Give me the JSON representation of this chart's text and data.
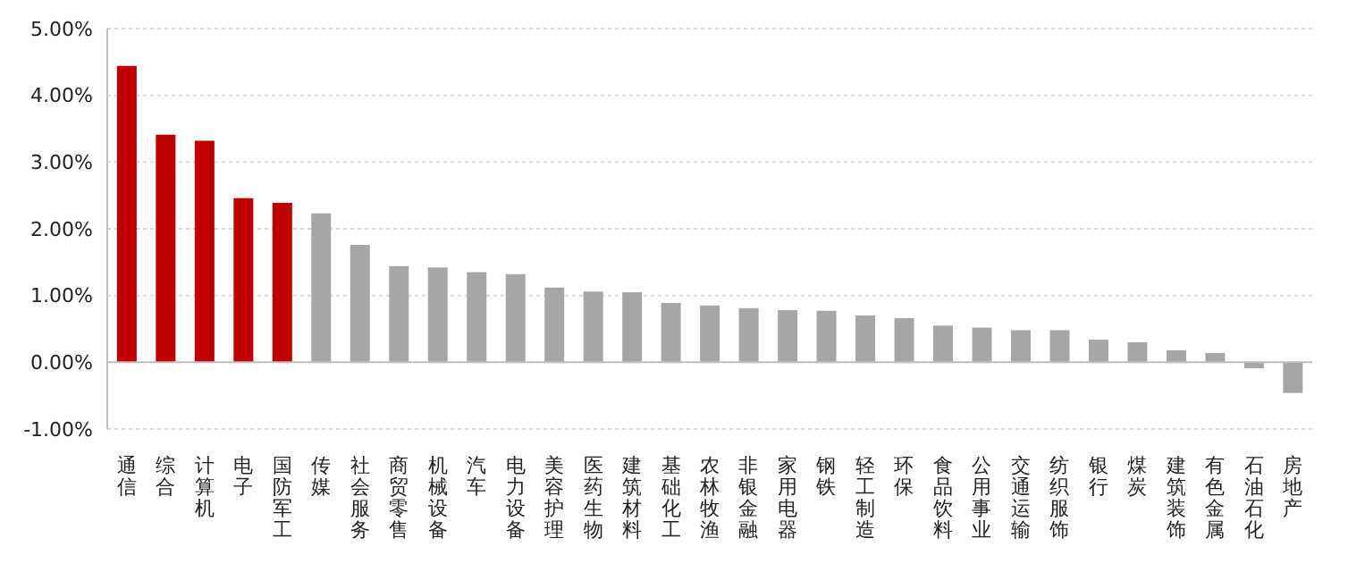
{
  "chart_data": {
    "type": "bar",
    "categories": [
      "通信",
      "综合",
      "计算机",
      "电子",
      "国防军工",
      "传媒",
      "社会服务",
      "商贸零售",
      "机械设备",
      "汽车",
      "电力设备",
      "美容护理",
      "医药生物",
      "建筑材料",
      "基础化工",
      "农林牧渔",
      "非银金融",
      "家用电器",
      "钢铁",
      "轻工制造",
      "环保",
      "食品饮料",
      "公用事业",
      "交通运输",
      "纺织服饰",
      "银行",
      "煤炭",
      "建筑装饰",
      "有色金属",
      "石油石化",
      "房地产"
    ],
    "values": [
      4.44,
      3.41,
      3.32,
      2.46,
      2.39,
      2.23,
      1.76,
      1.44,
      1.42,
      1.35,
      1.32,
      1.12,
      1.06,
      1.05,
      0.89,
      0.85,
      0.81,
      0.78,
      0.77,
      0.7,
      0.66,
      0.55,
      0.52,
      0.48,
      0.48,
      0.34,
      0.3,
      0.18,
      0.14,
      -0.09,
      -0.46
    ],
    "colors": [
      "#c00000",
      "#c00000",
      "#c00000",
      "#c00000",
      "#c00000",
      "#a6a6a6",
      "#a6a6a6",
      "#a6a6a6",
      "#a6a6a6",
      "#a6a6a6",
      "#a6a6a6",
      "#a6a6a6",
      "#a6a6a6",
      "#a6a6a6",
      "#a6a6a6",
      "#a6a6a6",
      "#a6a6a6",
      "#a6a6a6",
      "#a6a6a6",
      "#a6a6a6",
      "#a6a6a6",
      "#a6a6a6",
      "#a6a6a6",
      "#a6a6a6",
      "#a6a6a6",
      "#a6a6a6",
      "#a6a6a6",
      "#a6a6a6",
      "#a6a6a6",
      "#a6a6a6",
      "#a6a6a6"
    ],
    "ylim": [
      -1,
      5
    ],
    "yticks": [
      {
        "value": -1,
        "label": "-1.00%"
      },
      {
        "value": 0,
        "label": "0.00%"
      },
      {
        "value": 1,
        "label": "1.00%"
      },
      {
        "value": 2,
        "label": "2.00%"
      },
      {
        "value": 3,
        "label": "3.00%"
      },
      {
        "value": 4,
        "label": "4.00%"
      },
      {
        "value": 5,
        "label": "5.00%"
      }
    ],
    "grid": "y",
    "legend": false
  }
}
